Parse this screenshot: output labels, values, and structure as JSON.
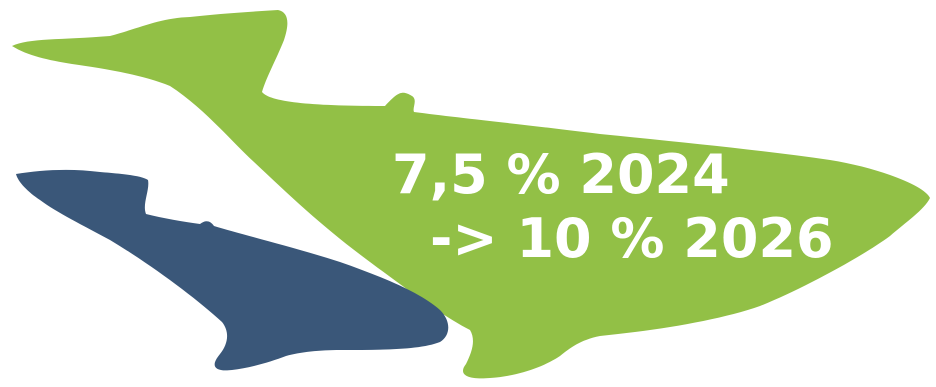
{
  "colors": {
    "large_whale": "#92c046",
    "small_whale": "#3a5779",
    "text": "#ffffff"
  },
  "text": {
    "line1": "7,5 % 2024",
    "line2": "-> 10 % 2026"
  }
}
